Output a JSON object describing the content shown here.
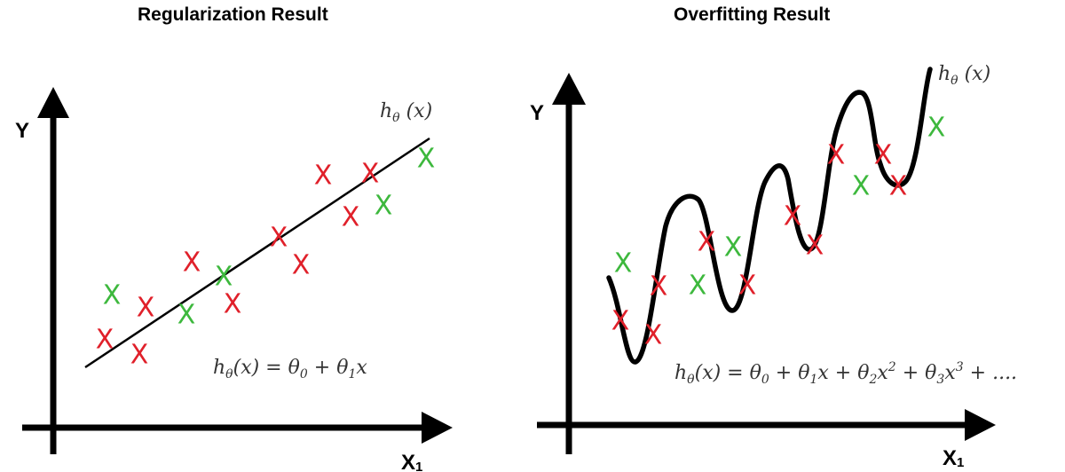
{
  "left_panel": {
    "title": "Regularization Result",
    "y_label": "Y",
    "x_label": "X",
    "x_subscript": "1",
    "curve_label": "hθ (x)",
    "equation": "hθ(x) = θ0 + θ1x"
  },
  "right_panel": {
    "title": "Overfitting Result",
    "y_label": "Y",
    "x_label": "X",
    "x_subscript": "1",
    "curve_label": "hθ (x)",
    "equation": "hθ(x) = θ0 + θ1x + θ2x2 + θ3x3 + ...."
  },
  "marker_glyph": "X",
  "colors": {
    "red": "#e0202a",
    "green": "#3db83d",
    "axis": "#000000"
  },
  "markers": {
    "left": [
      {
        "c": "green"
      },
      {
        "c": "red"
      },
      {
        "c": "red"
      },
      {
        "c": "red"
      },
      {
        "c": "green"
      },
      {
        "c": "red"
      },
      {
        "c": "green"
      },
      {
        "c": "red"
      },
      {
        "c": "red"
      },
      {
        "c": "red"
      },
      {
        "c": "red"
      },
      {
        "c": "red"
      },
      {
        "c": "green"
      },
      {
        "c": "red"
      },
      {
        "c": "green"
      }
    ],
    "right": [
      {
        "c": "green"
      },
      {
        "c": "red"
      },
      {
        "c": "red"
      },
      {
        "c": "red"
      },
      {
        "c": "green"
      },
      {
        "c": "red"
      },
      {
        "c": "green"
      },
      {
        "c": "red"
      },
      {
        "c": "red"
      },
      {
        "c": "red"
      },
      {
        "c": "red"
      },
      {
        "c": "green"
      },
      {
        "c": "red"
      },
      {
        "c": "red"
      },
      {
        "c": "green"
      }
    ]
  }
}
